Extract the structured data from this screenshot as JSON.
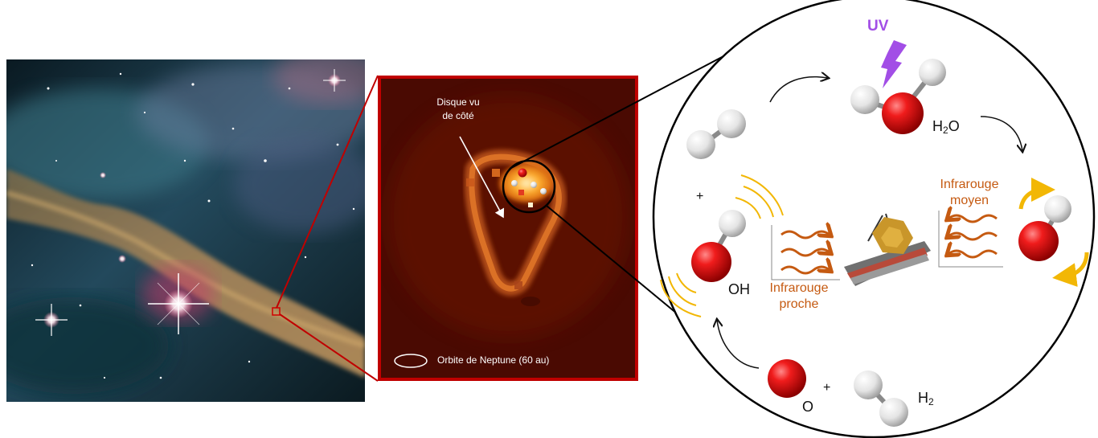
{
  "colors": {
    "frame_red": "#c00000",
    "arrow_orange": "#c55a11",
    "label_orange": "#c55a11",
    "uv_purple": "#a24ee6",
    "oxygen_red": "#e8141b",
    "hydrogen_grey": "#e6e6e6",
    "vibration_yellow": "#f2b705"
  },
  "icons": [
    "nebula-image",
    "disk-zoom-image",
    "water-molecule-icon",
    "hydroxyl-molecule-icon",
    "oxygen-atom-icon",
    "hydrogen-molecule-icon",
    "jwst-telescope-icon",
    "lightning-icon"
  ],
  "zoom_panel": {
    "disk_label_line1": "Disque vu",
    "disk_label_line2": "de côté",
    "legend_label": "Orbite de Neptune (60 au)"
  },
  "cycle": {
    "uv_label": "UV",
    "h2o_base": "H",
    "h2o_sub": "2",
    "h2o_tail": "O",
    "oh_label": "OH",
    "o_label": "O",
    "h2_base": "H",
    "h2_sub": "2",
    "plus_sign": "+",
    "nir_line1": "Infrarouge",
    "nir_line2": "proche",
    "mir_line1": "Infrarouge",
    "mir_line2": "moyen"
  }
}
